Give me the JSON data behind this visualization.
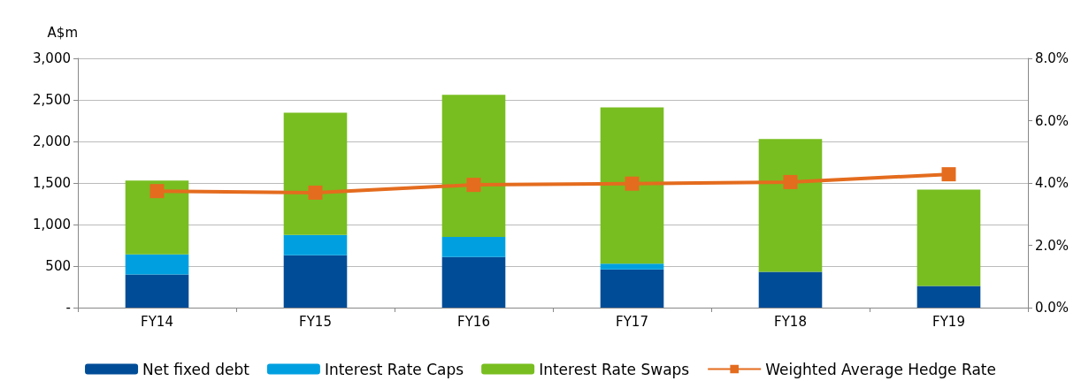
{
  "chart_data": {
    "type": "bar",
    "ylabel": "A$m",
    "stacked": true,
    "categories": [
      "FY14",
      "FY15",
      "FY16",
      "FY17",
      "FY18",
      "FY19"
    ],
    "series": [
      {
        "name": "Net fixed debt",
        "color": "#004c97",
        "values": [
          400,
          630,
          610,
          460,
          430,
          260
        ]
      },
      {
        "name": "Interest Rate Caps",
        "color": "#00a0e0",
        "values": [
          240,
          245,
          240,
          70,
          0,
          0
        ]
      },
      {
        "name": "Interest Rate Swaps",
        "color": "#78be20",
        "values": [
          890,
          1470,
          1710,
          1880,
          1600,
          1160
        ]
      },
      {
        "name": "Weighted Average Hedge Rate",
        "type": "line",
        "axis": "y2",
        "color": "#e46c1e",
        "marker": "square",
        "values": [
          3.74,
          3.69,
          3.94,
          3.98,
          4.03,
          4.28
        ]
      }
    ],
    "ylim": [
      0,
      3000
    ],
    "yticks": [
      {
        "value": 0,
        "label": "-"
      },
      {
        "value": 500,
        "label": "500"
      },
      {
        "value": 1000,
        "label": "1,000"
      },
      {
        "value": 1500,
        "label": "1,500"
      },
      {
        "value": 2000,
        "label": "2,000"
      },
      {
        "value": 2500,
        "label": "2,500"
      },
      {
        "value": 3000,
        "label": "3,000"
      }
    ],
    "y2lim": [
      0,
      8
    ],
    "y2ticks": [
      {
        "value": 0,
        "label": "0.0%"
      },
      {
        "value": 2,
        "label": "2.0%"
      },
      {
        "value": 4,
        "label": "4.0%"
      },
      {
        "value": 6,
        "label": "6.0%"
      },
      {
        "value": 8,
        "label": "8.0%"
      }
    ],
    "grid": "y",
    "legend": "bottom"
  }
}
